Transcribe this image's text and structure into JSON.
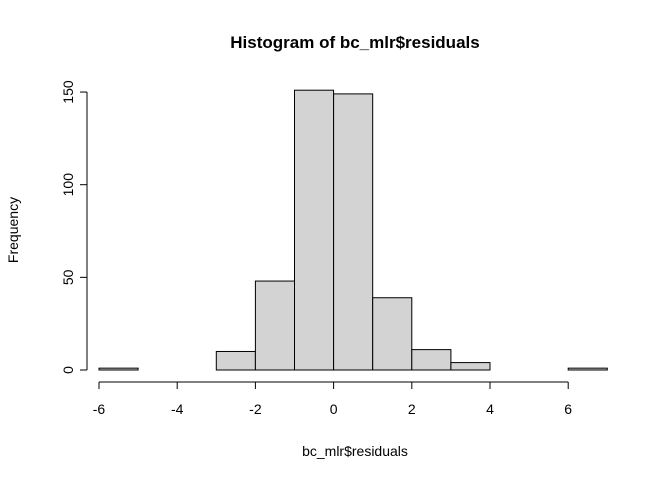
{
  "chart_data": {
    "type": "bar",
    "title": "Histogram of bc_mlr$residuals",
    "xlabel": "bc_mlr$residuals",
    "ylabel": "Frequency",
    "bins": [
      {
        "from": -6,
        "to": -5,
        "count": 1
      },
      {
        "from": -5,
        "to": -4,
        "count": 0
      },
      {
        "from": -4,
        "to": -3,
        "count": 0
      },
      {
        "from": -3,
        "to": -2,
        "count": 10
      },
      {
        "from": -2,
        "to": -1,
        "count": 48
      },
      {
        "from": -1,
        "to": 0,
        "count": 151
      },
      {
        "from": 0,
        "to": 1,
        "count": 149
      },
      {
        "from": 1,
        "to": 2,
        "count": 39
      },
      {
        "from": 2,
        "to": 3,
        "count": 11
      },
      {
        "from": 3,
        "to": 4,
        "count": 4
      },
      {
        "from": 4,
        "to": 5,
        "count": 0
      },
      {
        "from": 5,
        "to": 6,
        "count": 0
      },
      {
        "from": 6,
        "to": 7,
        "count": 1
      }
    ],
    "xlim": [
      -6,
      7
    ],
    "ylim": [
      0,
      151
    ],
    "x_ticks": [
      -6,
      -4,
      -2,
      0,
      2,
      4,
      6
    ],
    "x_tick_labels": [
      "-6",
      "-4",
      "-2",
      "0",
      "2",
      "4",
      "6"
    ],
    "y_ticks": [
      0,
      50,
      100,
      150
    ],
    "y_tick_labels": [
      "0",
      "50",
      "100",
      "150"
    ],
    "bar_fill": "#d3d3d3",
    "bar_stroke": "#000000",
    "grid": false,
    "legend": "none"
  }
}
